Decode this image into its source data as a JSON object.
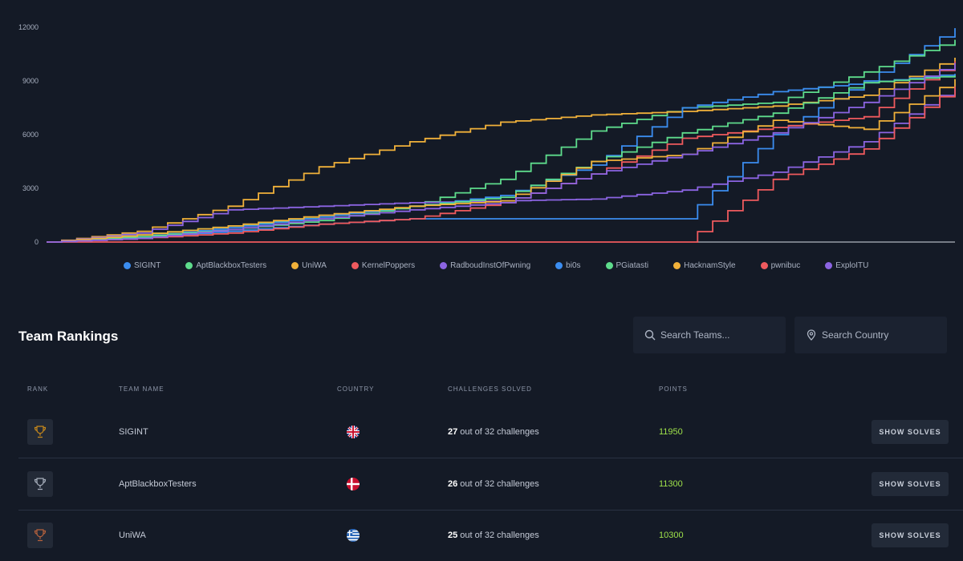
{
  "chart_data": {
    "type": "line",
    "title": "",
    "xlabel": "",
    "ylabel": "",
    "ylim": [
      0,
      12000
    ],
    "yticks": [
      "0",
      "3000",
      "6000",
      "9000",
      "12000"
    ],
    "x": [
      0,
      10,
      20,
      30,
      40,
      50,
      60,
      70,
      80,
      90,
      100
    ],
    "grid": false,
    "legend": "bottom",
    "series": [
      {
        "name": "SIGINT",
        "color": "#3b8df0",
        "values": [
          0,
          250,
          600,
          1000,
          1300,
          1300,
          1300,
          1300,
          6000,
          9000,
          11950
        ]
      },
      {
        "name": "AptBlackboxTesters",
        "color": "#5edc8c",
        "values": [
          0,
          400,
          900,
          1400,
          2000,
          3500,
          6200,
          7500,
          7800,
          9500,
          11300
        ]
      },
      {
        "name": "UniWA",
        "color": "#f1b13a",
        "values": [
          0,
          600,
          2000,
          4200,
          5600,
          6700,
          7100,
          7300,
          7600,
          8200,
          10300
        ]
      },
      {
        "name": "KernelPoppers",
        "color": "#ef5a5e",
        "values": [
          0,
          200,
          500,
          1000,
          1300,
          2200,
          3800,
          5800,
          6400,
          7000,
          10100
        ]
      },
      {
        "name": "RadboudInstOfPwning",
        "color": "#8b64e2",
        "values": [
          0,
          500,
          1800,
          2000,
          2200,
          2300,
          2400,
          2900,
          3900,
          5600,
          8700
        ]
      },
      {
        "name": "bi0s",
        "color": "#3b8df0",
        "values": [
          0,
          300,
          800,
          1400,
          2000,
          2600,
          4300,
          7500,
          8400,
          8900,
          9400
        ]
      },
      {
        "name": "PGiatasti",
        "color": "#5edc8c",
        "values": [
          0,
          300,
          700,
          1200,
          2000,
          2500,
          4500,
          6100,
          7200,
          8900,
          9300
        ]
      },
      {
        "name": "HacknamStyle",
        "color": "#f1b13a",
        "values": [
          0,
          400,
          900,
          1500,
          2000,
          2300,
          4500,
          4900,
          6800,
          6300,
          9100
        ]
      },
      {
        "name": "pwnibuc",
        "color": "#ef5a5e",
        "values": [
          0,
          0,
          0,
          0,
          0,
          0,
          0,
          0,
          3500,
          5200,
          8700
        ]
      },
      {
        "name": "ExploITU",
        "color": "#8b64e2",
        "values": [
          0,
          200,
          700,
          1300,
          1800,
          2200,
          3800,
          4900,
          6100,
          7800,
          10000
        ]
      }
    ]
  },
  "rankings": {
    "title": "Team Rankings",
    "search_teams_placeholder": "Search Teams...",
    "search_country_placeholder": "Search Country",
    "columns": {
      "rank": "RANK",
      "team": "TEAM NAME",
      "country": "COUNTRY",
      "solved": "CHALLENGES SOLVED",
      "points": "POINTS"
    },
    "rows": [
      {
        "trophy_color": "#c7891b",
        "team": "SIGINT",
        "country_icon": "uk-flag-icon",
        "solved": "27",
        "solved_suffix": " out of 32 challenges",
        "points": "11950",
        "button": "SHOW SOLVES"
      },
      {
        "trophy_color": "#a8b0bd",
        "team": "AptBlackboxTesters",
        "country_icon": "denmark-flag-icon",
        "solved": "26",
        "solved_suffix": " out of 32 challenges",
        "points": "11300",
        "button": "SHOW SOLVES"
      },
      {
        "trophy_color": "#b5613c",
        "team": "UniWA",
        "country_icon": "greece-flag-icon",
        "solved": "25",
        "solved_suffix": " out of 32 challenges",
        "points": "10300",
        "button": "SHOW SOLVES"
      }
    ]
  }
}
